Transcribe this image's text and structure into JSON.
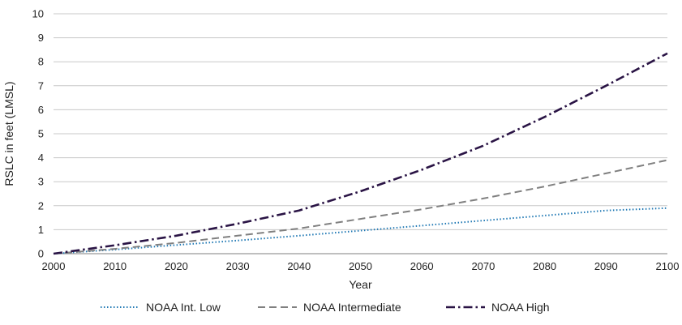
{
  "chart_data": {
    "type": "line",
    "title": "",
    "xlabel": "Year",
    "ylabel": "RSLC in feet (LMSL)",
    "xlim": [
      2000,
      2100
    ],
    "ylim": [
      0,
      10
    ],
    "x_ticks": [
      "2000",
      "2010",
      "2020",
      "2030",
      "2040",
      "2050",
      "2060",
      "2070",
      "2080",
      "2090",
      "2100"
    ],
    "y_ticks": [
      "0",
      "1",
      "2",
      "3",
      "4",
      "5",
      "6",
      "7",
      "8",
      "9",
      "10"
    ],
    "grid": "horizontal",
    "legend_position": "bottom",
    "x": [
      2000,
      2010,
      2020,
      2030,
      2040,
      2050,
      2060,
      2070,
      2080,
      2090,
      2100
    ],
    "series": [
      {
        "name": "NOAA Int. Low",
        "color": "#1f78b4",
        "dash": "dotted",
        "values": [
          0,
          0.17,
          0.36,
          0.55,
          0.75,
          0.96,
          1.17,
          1.38,
          1.59,
          1.8,
          1.9
        ]
      },
      {
        "name": "NOAA Intermediate",
        "color": "#808080",
        "dash": "dashed",
        "values": [
          0,
          0.2,
          0.45,
          0.75,
          1.05,
          1.45,
          1.85,
          2.3,
          2.8,
          3.35,
          3.9
        ]
      },
      {
        "name": "NOAA High",
        "color": "#2a1445",
        "dash": "dashdot",
        "values": [
          0,
          0.35,
          0.75,
          1.25,
          1.8,
          2.6,
          3.5,
          4.5,
          5.7,
          7.0,
          8.35
        ]
      }
    ]
  }
}
